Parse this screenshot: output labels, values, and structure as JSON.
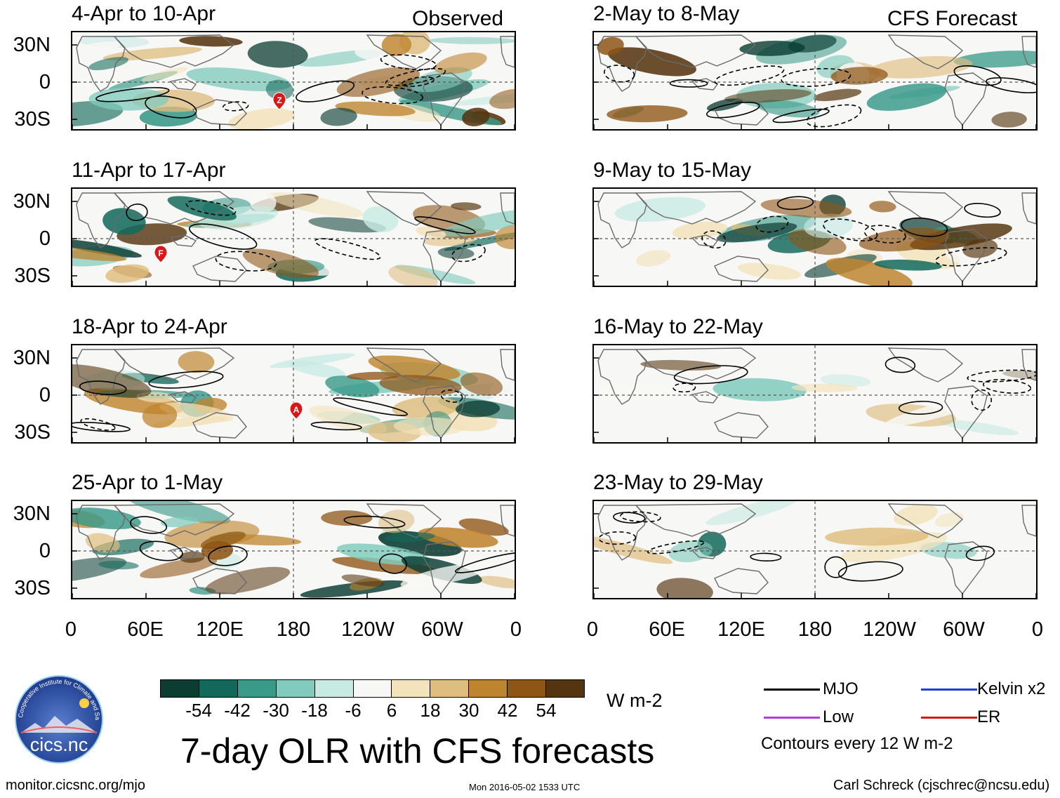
{
  "header": {
    "observed_label": "Observed",
    "forecast_label": "CFS Forecast"
  },
  "panels": [
    {
      "title": "4-Apr to 10-Apr"
    },
    {
      "title": "11-Apr to 17-Apr"
    },
    {
      "title": "18-Apr to 24-Apr"
    },
    {
      "title": "25-Apr to 1-May"
    },
    {
      "title": "2-May to 8-May"
    },
    {
      "title": "9-May to 15-May"
    },
    {
      "title": "16-May to 22-May"
    },
    {
      "title": "23-May to 29-May"
    }
  ],
  "storm_markers": [
    {
      "panel": 0,
      "label": "Z"
    },
    {
      "panel": 1,
      "label": "F"
    },
    {
      "panel": 2,
      "label": "A"
    }
  ],
  "lat_labels": [
    "30N",
    "0",
    "30S"
  ],
  "lon_labels": [
    "0",
    "60E",
    "120E",
    "180",
    "120W",
    "60W",
    "0"
  ],
  "colorbar": {
    "units": "W m-2",
    "ticks": [
      "-54",
      "-42",
      "-30",
      "-18",
      "-6",
      "6",
      "18",
      "30",
      "42",
      "54"
    ],
    "colors": [
      "#0b3d33",
      "#12695b",
      "#3a9a8a",
      "#80cbbd",
      "#c7eae3",
      "#f7f7f5",
      "#f3e3bb",
      "#dfbd7e",
      "#bf842e",
      "#8f5515",
      "#55350f"
    ]
  },
  "legend": {
    "items": [
      {
        "label": "MJO",
        "color": "#000000"
      },
      {
        "label": "Kelvin x2",
        "color": "#1f3fd6"
      },
      {
        "label": "Low",
        "color": "#b040d8"
      },
      {
        "label": "ER",
        "color": "#d81818"
      }
    ],
    "contour_note": "Contours every 12 W m-2"
  },
  "footer": {
    "main_title": "7-day OLR with CFS forecasts",
    "url": "monitor.cicsnc.org/mjo",
    "timestamp": "Mon 2016-05-02 1533 UTC",
    "author": "Carl Schreck (cjschrec@ncsu.edu)",
    "logo_text": "cics.nc",
    "logo_ring_text": "Cooperative Institute for Climate and Satellites"
  }
}
